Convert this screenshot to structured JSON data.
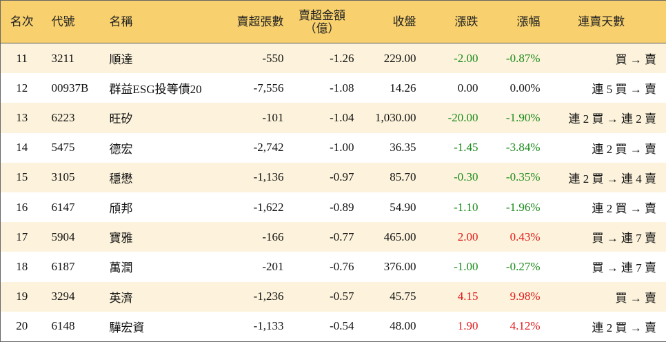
{
  "table": {
    "header": [
      "名次",
      "代號",
      "名稱",
      "賣超張數",
      "賣超金額\n（億）",
      "收盤",
      "漲跌",
      "漲幅",
      "連賣天數"
    ],
    "rows": [
      [
        "11",
        "3211",
        "順達",
        "-550",
        "-1.26",
        "229.00",
        "-2.00",
        "-0.87%",
        "買 → 賣"
      ],
      [
        "12",
        "00937B",
        "群益ESG投等債20",
        "-7,556",
        "-1.08",
        "14.26",
        "0.00",
        "0.00%",
        "連 5 買 → 賣"
      ],
      [
        "13",
        "6223",
        "旺矽",
        "-101",
        "-1.04",
        "1,030.00",
        "-20.00",
        "-1.90%",
        "連 2 買 → 連 2 賣"
      ],
      [
        "14",
        "5475",
        "德宏",
        "-2,742",
        "-1.00",
        "36.35",
        "-1.45",
        "-3.84%",
        "連 2 買 → 賣"
      ],
      [
        "15",
        "3105",
        "穩懋",
        "-1,136",
        "-0.97",
        "85.70",
        "-0.30",
        "-0.35%",
        "連 2 買 → 連 4 賣"
      ],
      [
        "16",
        "6147",
        "頎邦",
        "-1,622",
        "-0.89",
        "54.90",
        "-1.10",
        "-1.96%",
        "連 2 買 → 賣"
      ],
      [
        "17",
        "5904",
        "寶雅",
        "-166",
        "-0.77",
        "465.00",
        "2.00",
        "0.43%",
        "買 → 連 7 賣"
      ],
      [
        "18",
        "6187",
        "萬潤",
        "-201",
        "-0.76",
        "376.00",
        "-1.00",
        "-0.27%",
        "買 → 連 7 賣"
      ],
      [
        "19",
        "3294",
        "英濟",
        "-1,236",
        "-0.57",
        "45.75",
        "4.15",
        "9.98%",
        "買 → 賣"
      ],
      [
        "20",
        "6148",
        "驊宏資",
        "-1,133",
        "-0.54",
        "48.00",
        "1.90",
        "4.12%",
        "連 2 買 → 賣"
      ]
    ]
  }
}
